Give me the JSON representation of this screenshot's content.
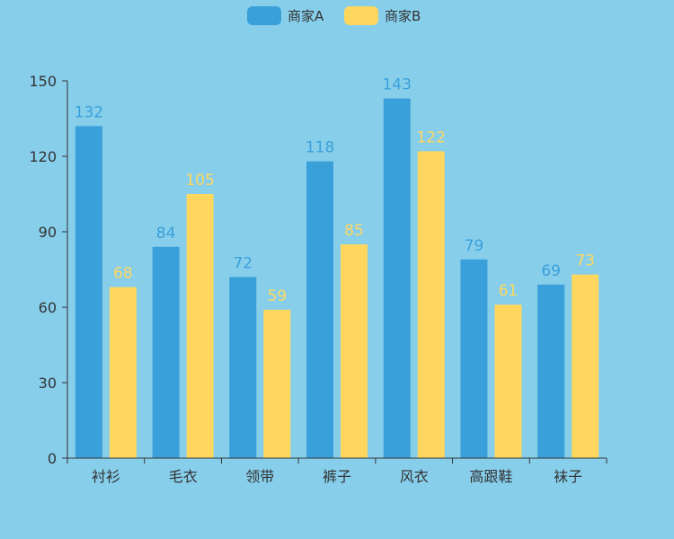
{
  "chart_data": {
    "type": "bar",
    "categories": [
      "衬衫",
      "毛衣",
      "领带",
      "裤子",
      "风衣",
      "高跟鞋",
      "袜子"
    ],
    "series": [
      {
        "name": "商家A",
        "color": "#3AA0DA",
        "values": [
          132,
          84,
          72,
          118,
          143,
          79,
          69
        ]
      },
      {
        "name": "商家B",
        "color": "#FFD75E",
        "values": [
          68,
          105,
          59,
          85,
          122,
          61,
          73
        ]
      }
    ],
    "ylim": [
      0,
      150
    ],
    "yticks": [
      0,
      30,
      60,
      90,
      120,
      150
    ],
    "legend_position": "top-center",
    "grid": false,
    "background": "#87CEEB",
    "axis_color": "#333333"
  }
}
